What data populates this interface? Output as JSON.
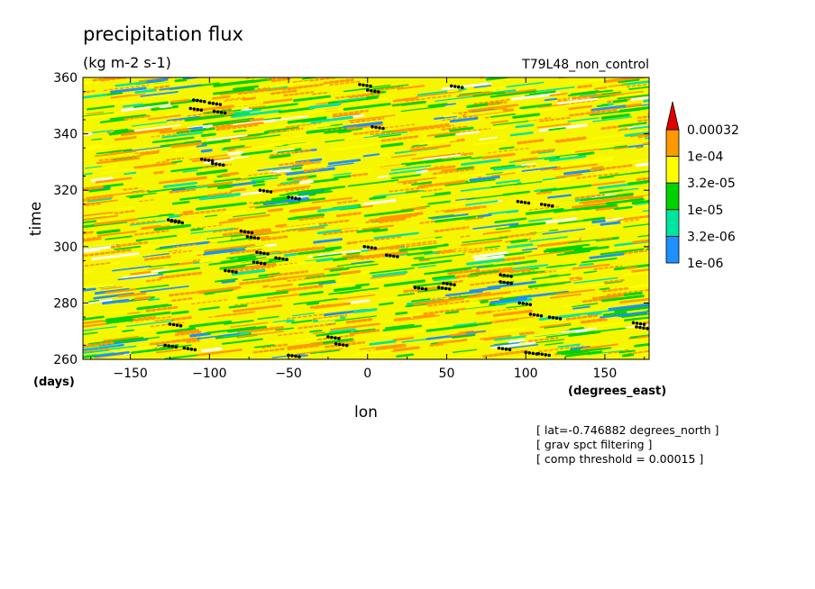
{
  "chart_data": {
    "type": "heatmap",
    "title": "precipitation flux",
    "units": "(kg m-2 s-1)",
    "dataset": "T79L48_non_control",
    "xlabel": "lon",
    "xunits": "(degrees_east)",
    "ylabel": "time",
    "yunits": "(days)",
    "xlim": [
      -180,
      178
    ],
    "ylim": [
      260,
      360
    ],
    "xticks": [
      -150,
      -100,
      -50,
      0,
      50,
      100,
      150
    ],
    "xtick_labels": [
      "−150",
      "−100",
      "−50",
      "0",
      "50",
      "100",
      "150"
    ],
    "yticks": [
      260,
      280,
      300,
      320,
      340,
      360
    ],
    "ytick_labels": [
      "260",
      "280",
      "300",
      "320",
      "340",
      "360"
    ],
    "colorbar": {
      "levels": [
        "1e-06",
        "3.2e-06",
        "1e-05",
        "3.2e-05",
        "1e-04",
        "0.00032"
      ],
      "colors": [
        "#1e90ff",
        "#00e5a0",
        "#00d200",
        "#ffff00",
        "#ff9900",
        "#e00000"
      ]
    },
    "notes": [
      "[ lat=-0.746882 degrees_north ]",
      "[ grav spct filtering ]",
      "[ comp threshold = 0.00015 ]"
    ],
    "threshold_markers": [
      [
        -110,
        352
      ],
      [
        -100,
        351
      ],
      [
        -112,
        349
      ],
      [
        -97,
        348
      ],
      [
        -5,
        357.5
      ],
      [
        0,
        355.5
      ],
      [
        53,
        357
      ],
      [
        3,
        342.5
      ],
      [
        -105,
        331
      ],
      [
        -98,
        329.5
      ],
      [
        -68,
        320
      ],
      [
        -50,
        317.5
      ],
      [
        -124,
        309
      ],
      [
        -126,
        309.5
      ],
      [
        -80,
        305.5
      ],
      [
        -76,
        303.5
      ],
      [
        -70,
        298
      ],
      [
        -58,
        296
      ],
      [
        -72,
        294.5
      ],
      [
        -90,
        291.5
      ],
      [
        -2,
        300
      ],
      [
        12,
        297
      ],
      [
        30,
        285.5
      ],
      [
        45,
        285.5
      ],
      [
        48,
        287
      ],
      [
        84,
        290
      ],
      [
        84,
        287.5
      ],
      [
        95,
        316
      ],
      [
        110,
        315
      ],
      [
        96,
        280
      ],
      [
        103,
        276
      ],
      [
        115,
        275
      ],
      [
        168,
        273
      ],
      [
        170,
        271.5
      ],
      [
        -125,
        272.5
      ],
      [
        -128,
        265
      ],
      [
        -116,
        264
      ],
      [
        -25,
        268
      ],
      [
        -20,
        265.5
      ],
      [
        -50,
        261.5
      ],
      [
        83,
        264
      ],
      [
        100,
        262.5
      ],
      [
        108,
        262
      ]
    ]
  }
}
